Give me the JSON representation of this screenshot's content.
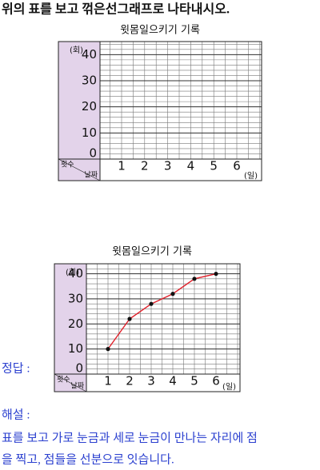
{
  "question": "위의 표를 보고 꺾은선그래프로 나타내시오.",
  "answer_label": "정답 :",
  "explanation_label": "해설 :",
  "explanation": [
    "표를 보고 가로 눈금과 세로 눈금이 만나는 자리에 점",
    "을 찍고, 점들을 선분으로 잇습니다."
  ],
  "chart_data": [
    {
      "type": "line",
      "title": "윗몸일으키기 기록",
      "y_unit": "(회)",
      "x_unit": "(일)",
      "corner_top": "횟수",
      "corner_bottom": "날짜",
      "categories": [
        "1",
        "2",
        "3",
        "4",
        "5",
        "6"
      ],
      "ylim": [
        0,
        45
      ],
      "yticks": [
        0,
        10,
        20,
        30,
        40
      ]
    },
    {
      "type": "line",
      "title": "윗몸일으키기 기록",
      "y_unit": "(회)",
      "x_unit": "(일)",
      "corner_top": "횟수",
      "corner_bottom": "날짜",
      "categories": [
        "1",
        "2",
        "3",
        "4",
        "5",
        "6"
      ],
      "ylim": [
        0,
        44
      ],
      "yticks": [
        0,
        10,
        20,
        30,
        40
      ],
      "values": [
        10,
        22,
        28,
        32,
        38,
        40
      ],
      "color": "#e0202a",
      "marker_color": "#111111"
    }
  ]
}
